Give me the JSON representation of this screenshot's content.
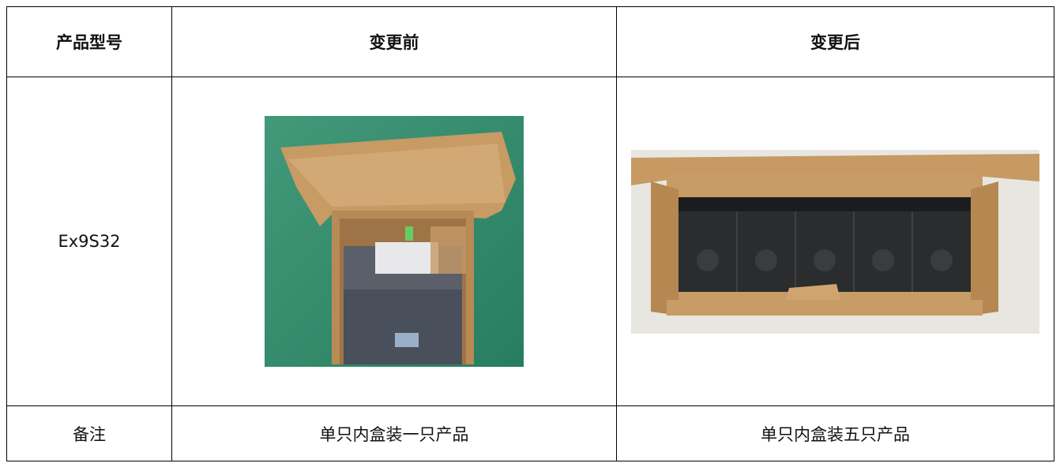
{
  "table": {
    "header": [
      "产品型号",
      "变更前",
      "变更后"
    ],
    "rows": [
      [
        "Ex9S32"
      ],
      [
        "备注",
        "单只内盒装一只产品",
        "单只内盒装五只产品"
      ]
    ]
  }
}
